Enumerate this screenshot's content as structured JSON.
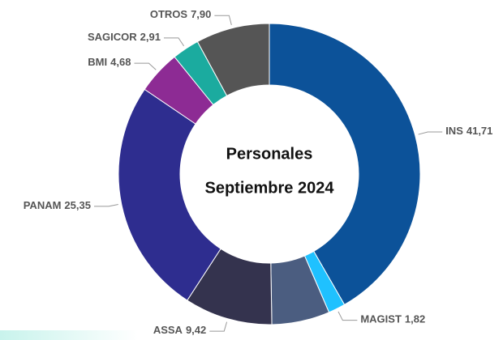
{
  "chart_data": {
    "type": "donut",
    "title": "Personales",
    "subtitle": "Septiembre 2024",
    "categories": [
      "INS",
      "MAGIST",
      null,
      "ASSA",
      "PANAM",
      "BMI",
      "SAGICOR",
      "OTROS"
    ],
    "values": [
      41.71,
      1.82,
      6.21,
      9.42,
      25.35,
      4.68,
      2.91,
      7.9
    ],
    "value_labels": [
      "41,71",
      "1,82",
      null,
      "9,42",
      "25,35",
      "4,68",
      "2,91",
      "7,90"
    ],
    "colors": [
      "#0c5299",
      "#1fc1ff",
      "#4b5d80",
      "#34334e",
      "#2e2d8f",
      "#8d2b94",
      "#1bab9f",
      "#555555"
    ]
  }
}
